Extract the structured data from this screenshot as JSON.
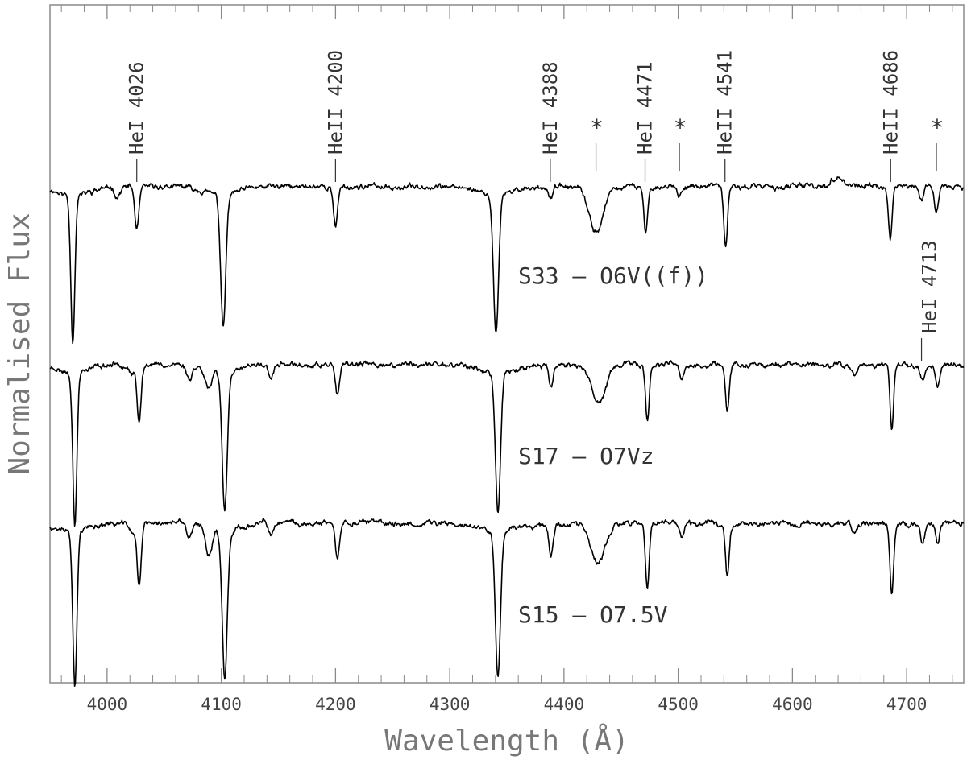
{
  "chart_data": {
    "type": "line",
    "title": "",
    "xlabel": "Wavelength (Å)",
    "ylabel": "Normalised Flux",
    "xlim": [
      3950,
      4750
    ],
    "x_ticks": [
      4000,
      4100,
      4200,
      4300,
      4400,
      4500,
      4600,
      4700
    ],
    "y_ticks_labeled": false,
    "grid": false,
    "legend": "none",
    "continuum": 1.0,
    "series": [
      {
        "name": "S33 – O6V((f))",
        "offset": 2.2,
        "noise_seed": 11,
        "lines": [
          {
            "w": 3970.0,
            "d": 0.91,
            "s": 2.0
          },
          {
            "w": 4009.0,
            "d": 0.06,
            "s": 2.5
          },
          {
            "w": 4026.0,
            "d": 0.27,
            "s": 2.0
          },
          {
            "w": 4101.7,
            "d": 0.83,
            "s": 2.5
          },
          {
            "w": 4200.0,
            "d": 0.25,
            "s": 2.0
          },
          {
            "w": 4340.5,
            "d": 0.87,
            "s": 2.5
          },
          {
            "w": 4388.0,
            "d": 0.08,
            "s": 2.0
          },
          {
            "w": 4428.0,
            "d": 0.28,
            "s": 7.0
          },
          {
            "w": 4471.5,
            "d": 0.3,
            "s": 1.8
          },
          {
            "w": 4501.0,
            "d": 0.07,
            "s": 2.0
          },
          {
            "w": 4541.6,
            "d": 0.37,
            "s": 1.8
          },
          {
            "w": 4685.7,
            "d": 0.34,
            "s": 1.8
          },
          {
            "w": 4713.0,
            "d": 0.09,
            "s": 2.0
          },
          {
            "w": 4726.0,
            "d": 0.15,
            "s": 2.0
          }
        ],
        "bumps": [
          {
            "w": 4640.0,
            "d": 0.06,
            "s": 5.0
          }
        ]
      },
      {
        "name": "S17 – O7Vz",
        "offset": 1.1,
        "noise_seed": 23,
        "lines": [
          {
            "w": 3971.8,
            "d": 0.95,
            "s": 2.0
          },
          {
            "w": 4022.0,
            "d": 0.05,
            "s": 2.5
          },
          {
            "w": 4028.0,
            "d": 0.35,
            "s": 2.0
          },
          {
            "w": 4072.0,
            "d": 0.08,
            "s": 2.5
          },
          {
            "w": 4089.0,
            "d": 0.12,
            "s": 3.0
          },
          {
            "w": 4103.0,
            "d": 0.84,
            "s": 2.5
          },
          {
            "w": 4143.8,
            "d": 0.08,
            "s": 2.5
          },
          {
            "w": 4201.5,
            "d": 0.2,
            "s": 2.0
          },
          {
            "w": 4342.2,
            "d": 0.88,
            "s": 2.5
          },
          {
            "w": 4388.5,
            "d": 0.14,
            "s": 2.0
          },
          {
            "w": 4430.0,
            "d": 0.24,
            "s": 7.0
          },
          {
            "w": 4473.0,
            "d": 0.34,
            "s": 1.8
          },
          {
            "w": 4503.0,
            "d": 0.08,
            "s": 2.0
          },
          {
            "w": 4543.0,
            "d": 0.3,
            "s": 1.8
          },
          {
            "w": 4654.0,
            "d": 0.08,
            "s": 2.5
          },
          {
            "w": 4687.0,
            "d": 0.4,
            "s": 1.8
          },
          {
            "w": 4714.0,
            "d": 0.1,
            "s": 2.0
          },
          {
            "w": 4727.0,
            "d": 0.13,
            "s": 2.0
          }
        ],
        "bumps": []
      },
      {
        "name": "S15 – O7.5V",
        "offset": 0.0,
        "noise_seed": 37,
        "lines": [
          {
            "w": 3971.8,
            "d": 0.98,
            "s": 2.0
          },
          {
            "w": 4022.0,
            "d": 0.06,
            "s": 2.5
          },
          {
            "w": 4028.0,
            "d": 0.38,
            "s": 2.0
          },
          {
            "w": 4072.0,
            "d": 0.09,
            "s": 2.5
          },
          {
            "w": 4089.0,
            "d": 0.16,
            "s": 3.0
          },
          {
            "w": 4103.0,
            "d": 0.9,
            "s": 2.5
          },
          {
            "w": 4143.8,
            "d": 0.09,
            "s": 2.5
          },
          {
            "w": 4201.5,
            "d": 0.22,
            "s": 2.0
          },
          {
            "w": 4342.2,
            "d": 0.9,
            "s": 2.5
          },
          {
            "w": 4388.5,
            "d": 0.2,
            "s": 2.0
          },
          {
            "w": 4430.0,
            "d": 0.25,
            "s": 7.0
          },
          {
            "w": 4473.0,
            "d": 0.4,
            "s": 1.8
          },
          {
            "w": 4503.0,
            "d": 0.09,
            "s": 2.0
          },
          {
            "w": 4543.0,
            "d": 0.33,
            "s": 1.8
          },
          {
            "w": 4654.0,
            "d": 0.07,
            "s": 2.5
          },
          {
            "w": 4687.0,
            "d": 0.44,
            "s": 1.8
          },
          {
            "w": 4714.0,
            "d": 0.12,
            "s": 2.0
          },
          {
            "w": 4727.0,
            "d": 0.13,
            "s": 2.0
          }
        ],
        "bumps": []
      }
    ],
    "line_ids": [
      {
        "label": "HeI 4026",
        "w": 4026
      },
      {
        "label": "HeII 4200",
        "w": 4200
      },
      {
        "label": "HeI 4388",
        "w": 4388
      },
      {
        "label": "*",
        "w": 4428
      },
      {
        "label": "HeI 4471",
        "w": 4471
      },
      {
        "label": "*",
        "w": 4501
      },
      {
        "label": "HeII 4541",
        "w": 4541
      },
      {
        "label": "HeII 4686",
        "w": 4686
      },
      {
        "label": "*",
        "w": 4726
      },
      {
        "label": "HeI 4713",
        "w": 4713
      }
    ]
  }
}
